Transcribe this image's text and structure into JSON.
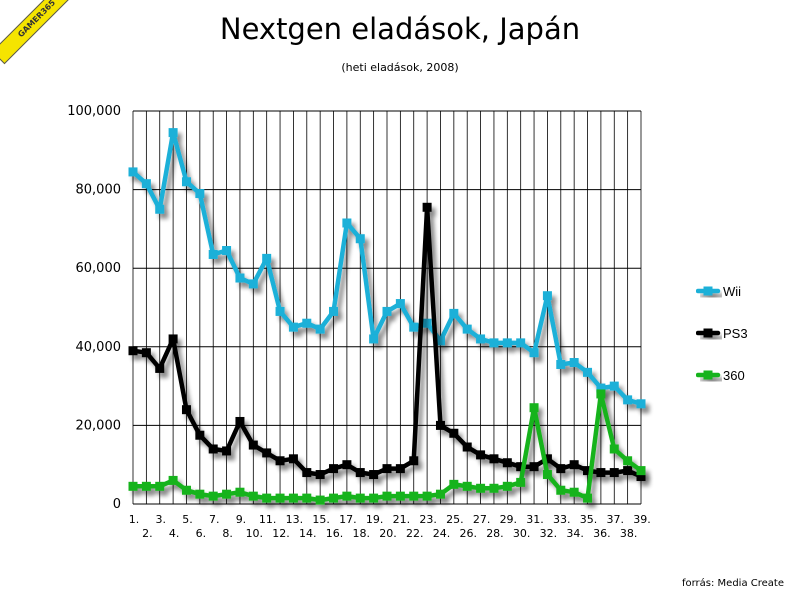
{
  "badge": "GAMER365",
  "source": "forrás: Media Create",
  "chart_data": {
    "type": "line",
    "title": "Nextgen eladások, Japán",
    "subtitle": "(heti eladások, 2008)",
    "xlabel": "",
    "ylabel": "",
    "ylim": [
      0,
      100000
    ],
    "y_ticks": [
      "0",
      "20,000",
      "40,000",
      "60,000",
      "80,000",
      "100,000"
    ],
    "x": [
      "1.",
      "2.",
      "3.",
      "4.",
      "5.",
      "6.",
      "7.",
      "8.",
      "9.",
      "10.",
      "11.",
      "12.",
      "13.",
      "14.",
      "15.",
      "16.",
      "17.",
      "18.",
      "19.",
      "20.",
      "21.",
      "22.",
      "23.",
      "24.",
      "25.",
      "26.",
      "27.",
      "28.",
      "29.",
      "30.",
      "31.",
      "32.",
      "33.",
      "34.",
      "35.",
      "36.",
      "37.",
      "38.",
      "39."
    ],
    "grid": true,
    "legend_position": "right",
    "series": [
      {
        "name": "Wii",
        "color": "#1ab0d8",
        "values": [
          84500,
          81500,
          75000,
          94500,
          82000,
          79000,
          63500,
          64500,
          57500,
          56000,
          62500,
          49000,
          45000,
          46000,
          44500,
          49000,
          71500,
          67500,
          42000,
          49000,
          51000,
          45000,
          46000,
          41500,
          48500,
          44500,
          42000,
          41000,
          41000,
          41000,
          38500,
          53000,
          35500,
          36000,
          33500,
          29500,
          30000,
          26500,
          25500
        ]
      },
      {
        "name": "PS3",
        "color": "#000000",
        "values": [
          39000,
          38500,
          34500,
          42000,
          24000,
          17500,
          14000,
          13500,
          21000,
          15000,
          13000,
          11000,
          11500,
          8000,
          7500,
          9000,
          10000,
          8000,
          7500,
          9000,
          9000,
          11000,
          75500,
          20000,
          18000,
          14500,
          12500,
          11500,
          10500,
          9500,
          9500,
          11500,
          9000,
          10000,
          8500,
          8000,
          8000,
          8500,
          7000
        ]
      },
      {
        "name": "360",
        "color": "#19b31c",
        "values": [
          4500,
          4500,
          4500,
          6000,
          3500,
          2500,
          2000,
          2500,
          3000,
          2000,
          1500,
          1500,
          1500,
          1500,
          1000,
          1500,
          2000,
          1500,
          1500,
          2000,
          2000,
          2000,
          2000,
          2500,
          5000,
          4500,
          4000,
          4000,
          4500,
          5500,
          24500,
          7500,
          3500,
          3000,
          1500,
          28000,
          14000,
          11000,
          8500
        ]
      }
    ]
  }
}
